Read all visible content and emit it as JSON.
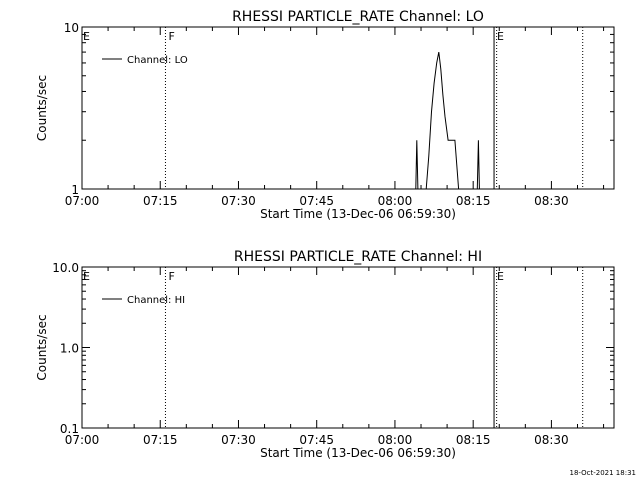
{
  "footer_timestamp": "18-Oct-2021 18:31",
  "chart_data": [
    {
      "type": "line",
      "title": "RHESSI PARTICLE_RATE Channel: LO",
      "xlabel": "Start Time (13-Dec-06 06:59:30)",
      "ylabel": "Counts/sec",
      "yscale": "log",
      "xlim": [
        "07:00",
        "08:42"
      ],
      "ylim": [
        1,
        10
      ],
      "ytick_labels": [
        "1",
        "10"
      ],
      "xtick_labels": [
        "07:00",
        "07:15",
        "07:30",
        "07:45",
        "08:00",
        "08:15",
        "08:30"
      ],
      "grid": false,
      "legend": {
        "placement": "top-left",
        "entries": [
          "Channel: LO"
        ]
      },
      "markers": [
        {
          "time": "07:16",
          "label": "F",
          "style": "dotted"
        },
        {
          "time": "08:19",
          "label": "E",
          "style": "solid"
        },
        {
          "time": "08:19.5",
          "label": "",
          "style": "dotted"
        },
        {
          "time": "08:36",
          "label": "",
          "style": "dotted"
        }
      ],
      "edge_labels": [
        {
          "time": "07:00",
          "label": "E"
        }
      ],
      "series": [
        {
          "name": "Channel: LO",
          "points": [
            [
              "08:04.0",
              1
            ],
            [
              "08:04.2",
              2
            ],
            [
              "08:04.4",
              1
            ],
            [
              "08:06.0",
              1
            ],
            [
              "08:06.5",
              1.6
            ],
            [
              "08:07.0",
              3.0
            ],
            [
              "08:07.5",
              4.5
            ],
            [
              "08:08.0",
              6.0
            ],
            [
              "08:08.4",
              7.0
            ],
            [
              "08:08.8",
              5.5
            ],
            [
              "08:09.2",
              3.8
            ],
            [
              "08:09.6",
              2.8
            ],
            [
              "08:10.2",
              2.0
            ],
            [
              "08:11.5",
              2.0
            ],
            [
              "08:12.2",
              1
            ],
            [
              "08:15.8",
              1
            ],
            [
              "08:16.0",
              2
            ],
            [
              "08:16.2",
              1
            ]
          ]
        }
      ]
    },
    {
      "type": "line",
      "title": "RHESSI PARTICLE_RATE Channel: HI",
      "xlabel": "Start Time (13-Dec-06 06:59:30)",
      "ylabel": "Counts/sec",
      "yscale": "log",
      "xlim": [
        "07:00",
        "08:42"
      ],
      "ylim": [
        0.1,
        10
      ],
      "ytick_labels": [
        "0.1",
        "1.0",
        "10.0"
      ],
      "xtick_labels": [
        "07:00",
        "07:15",
        "07:30",
        "07:45",
        "08:00",
        "08:15",
        "08:30"
      ],
      "grid": false,
      "legend": {
        "placement": "top-left",
        "entries": [
          "Channel: HI"
        ]
      },
      "markers": [
        {
          "time": "07:16",
          "label": "F",
          "style": "dotted"
        },
        {
          "time": "08:19",
          "label": "E",
          "style": "solid"
        },
        {
          "time": "08:19.5",
          "label": "",
          "style": "dotted"
        },
        {
          "time": "08:36",
          "label": "",
          "style": "dotted"
        }
      ],
      "edge_labels": [
        {
          "time": "07:00",
          "label": "E"
        }
      ],
      "series": [
        {
          "name": "Channel: HI",
          "points": []
        }
      ]
    }
  ]
}
